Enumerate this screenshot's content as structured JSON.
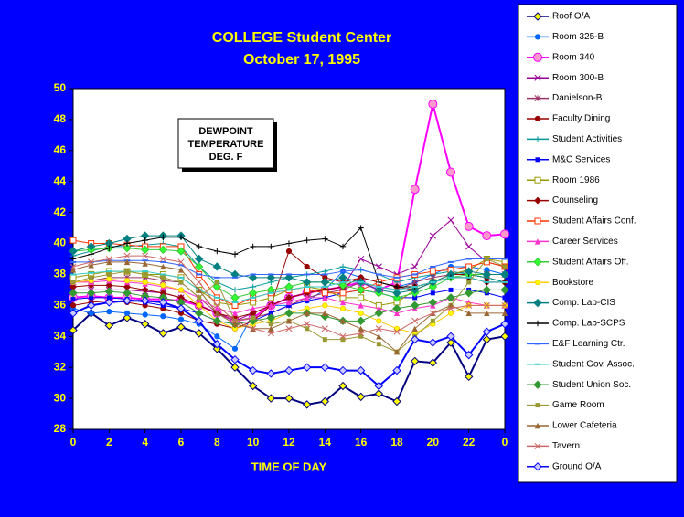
{
  "chart_data": {
    "type": "line",
    "title": "COLLEGE Student Center",
    "subtitle": "October 17, 1995",
    "annotation": [
      "DEWPOINT",
      "TEMPERATURE",
      "DEG.  F"
    ],
    "x_label": "TIME OF DAY",
    "x": [
      0,
      1,
      2,
      3,
      4,
      5,
      6,
      7,
      8,
      9,
      10,
      11,
      12,
      13,
      14,
      15,
      16,
      17,
      18,
      19,
      20,
      21,
      22,
      23,
      24
    ],
    "xlim": [
      0,
      24
    ],
    "xticks": [
      0,
      2,
      4,
      6,
      8,
      10,
      12,
      14,
      16,
      18,
      20,
      22,
      {
        "value": 24,
        "label": "0"
      }
    ],
    "ylim": [
      28,
      50
    ],
    "yticks": [
      28,
      30,
      32,
      34,
      36,
      38,
      40,
      42,
      44,
      46,
      48,
      50
    ],
    "grid": false,
    "legend": "right",
    "series": [
      {
        "name": "Roof O/A",
        "color": "#000080",
        "marker": "diamond",
        "marker_color": "#ffff00",
        "values": [
          34.4,
          35.5,
          34.7,
          35.2,
          34.8,
          34.2,
          34.6,
          34.2,
          33.2,
          32,
          30.8,
          30,
          30,
          29.6,
          29.8,
          30.8,
          30.1,
          30.3,
          29.8,
          32.4,
          32.3,
          33.6,
          31.4,
          33.8,
          34
        ]
      },
      {
        "name": "Room 325-B",
        "color": "#0066ff",
        "marker": "circle",
        "marker_color": "#0066ff",
        "values": [
          35.8,
          35.5,
          35.6,
          35.5,
          35.4,
          35.3,
          35.1,
          34.8,
          34,
          33.2,
          35.5,
          36,
          36,
          36.3,
          37,
          38.2,
          37.8,
          37.5,
          37.2,
          37.5,
          38,
          38.5,
          38.5,
          38.3,
          38
        ]
      },
      {
        "name": "Room 340",
        "color": "#ff00ff",
        "marker": "bigcircle",
        "marker_color": "#ff99cc",
        "values": [
          36.5,
          36.6,
          36.5,
          36.5,
          36.4,
          36.4,
          36.3,
          36,
          35.5,
          35,
          35.2,
          36,
          36.5,
          36.8,
          37,
          37.2,
          37.5,
          37,
          37.5,
          43.5,
          49,
          44.6,
          41.1,
          40.5,
          40.6
        ]
      },
      {
        "name": "Room 300-B",
        "color": "#990099",
        "marker": "x",
        "marker_color": "#990099",
        "values": [
          37,
          37,
          37,
          37,
          36.9,
          36.8,
          36.5,
          36,
          35.5,
          35,
          35.5,
          36,
          36.5,
          36.8,
          37,
          37.2,
          39,
          38.5,
          38,
          38.5,
          40.5,
          41.5,
          39.8,
          38.8,
          38.5
        ]
      },
      {
        "name": "Danielson-B",
        "color": "#993366",
        "marker": "star",
        "marker_color": "#993366",
        "values": [
          37.5,
          37.6,
          37.8,
          37.8,
          37.8,
          37.6,
          37.5,
          36.5,
          35.5,
          35,
          35.2,
          35.5,
          36,
          36.5,
          36.8,
          37,
          37.5,
          37.2,
          37,
          37.5,
          37.8,
          38,
          38,
          38,
          38
        ]
      },
      {
        "name": "Faculty Dining",
        "color": "#990000",
        "marker": "circle",
        "marker_color": "#990000",
        "values": [
          36,
          36.2,
          36.3,
          36.2,
          36,
          35.8,
          35.5,
          35,
          34.8,
          34.5,
          35,
          36,
          39.5,
          38.5,
          37.8,
          37.5,
          37.8,
          37.5,
          37.2,
          37.2,
          37.5,
          38,
          38,
          37.8,
          37.5
        ]
      },
      {
        "name": "Student Activities",
        "color": "#009999",
        "marker": "plus",
        "marker_color": "#009999",
        "values": [
          39.2,
          39.5,
          39.8,
          39.8,
          39.9,
          40,
          39.8,
          38.5,
          37.5,
          37,
          37.2,
          37.5,
          37.8,
          38,
          38.2,
          38.5,
          38.3,
          38,
          37.5,
          37.8,
          38,
          38.2,
          38,
          37.8,
          37.5
        ]
      },
      {
        "name": "M&C Services",
        "color": "#0000ff",
        "marker": "square",
        "marker_color": "#0000ff",
        "values": [
          36.4,
          36.5,
          36.5,
          36.4,
          36.2,
          36,
          35.8,
          35.5,
          35,
          34.8,
          35,
          35.5,
          36,
          36.3,
          36.5,
          36.8,
          37,
          36.8,
          36.5,
          36.5,
          36.8,
          37,
          37,
          36.8,
          36.5
        ]
      },
      {
        "name": "Room 1986",
        "color": "#999900",
        "marker": "opensquare",
        "marker_color": "#999900",
        "values": [
          37.8,
          38,
          38.2,
          38.2,
          38,
          38,
          37.8,
          37,
          36.2,
          36,
          36.2,
          36.5,
          37,
          37.2,
          37,
          36.5,
          36.5,
          36,
          36.2,
          37,
          37.5,
          38,
          38.3,
          39,
          38.8
        ]
      },
      {
        "name": "Counseling",
        "color": "#990000",
        "marker": "opendiamond",
        "marker_color": "#990000",
        "values": [
          37.2,
          37.3,
          37.3,
          37.2,
          37,
          36.8,
          36.5,
          36,
          35.5,
          35.2,
          35.5,
          36,
          36.5,
          36.8,
          37,
          37.2,
          37.8,
          37.5,
          37.2,
          37,
          37.5,
          37.8,
          37.8,
          37.5,
          37.5
        ]
      },
      {
        "name": "Student Affairs Conf.",
        "color": "#ff3300",
        "marker": "opensquare",
        "marker_color": "#ff3300",
        "values": [
          40.2,
          40,
          40,
          39.9,
          39.8,
          39.8,
          39.8,
          38,
          36.5,
          36,
          36.5,
          36.8,
          37,
          37,
          36.8,
          36.8,
          37,
          37.5,
          37.8,
          38,
          38.2,
          38.3,
          38.5,
          38.8,
          38.5
        ]
      },
      {
        "name": "Career Services",
        "color": "#ff33cc",
        "marker": "triangle",
        "marker_color": "#ff33cc",
        "values": [
          37.5,
          37.5,
          37.6,
          37.5,
          37.4,
          37.2,
          37,
          36.5,
          35.8,
          35.5,
          35.8,
          36,
          36.2,
          36.5,
          36.5,
          36.2,
          36,
          35.8,
          35.5,
          35.8,
          36,
          36.5,
          36.2,
          36,
          36
        ]
      },
      {
        "name": "Student Affairs Off.",
        "color": "#33cc33",
        "marker": "diamond",
        "marker_color": "#33ff33",
        "values": [
          39.5,
          39.6,
          39.7,
          39.7,
          39.6,
          39.6,
          39.5,
          38.5,
          37.2,
          36.5,
          36.8,
          37,
          37.2,
          37.5,
          37.5,
          37.3,
          37,
          36.8,
          36.5,
          36.8,
          37.2,
          37.8,
          38,
          38,
          38
        ]
      },
      {
        "name": "Bookstore",
        "color": "#ffcc00",
        "marker": "circle",
        "marker_color": "#ffff00",
        "values": [
          37.5,
          37.6,
          37.7,
          37.6,
          37.5,
          37.3,
          37,
          36,
          35,
          34.5,
          34.8,
          35,
          35.5,
          35.8,
          36,
          35.8,
          35.5,
          35,
          34.5,
          34.2,
          34.8,
          35.5,
          36,
          36,
          36
        ]
      },
      {
        "name": "Comp. Lab-CIS",
        "color": "#008080",
        "marker": "diamond",
        "marker_color": "#008080",
        "values": [
          39.5,
          39.8,
          40,
          40.3,
          40.5,
          40.5,
          40.5,
          39,
          38.5,
          38,
          37.8,
          37.8,
          37.8,
          37.5,
          37.5,
          37.8,
          37.5,
          37,
          36.8,
          37,
          37.5,
          38,
          38.2,
          38,
          38
        ]
      },
      {
        "name": "Comp. Lab-SCPS",
        "color": "#000000",
        "marker": "plus",
        "marker_color": "#000000",
        "values": [
          39,
          39.3,
          39.7,
          40,
          40.2,
          40.4,
          40.4,
          39.8,
          39.5,
          39.3,
          39.8,
          39.8,
          40,
          40.2,
          40.3,
          39.8,
          41,
          37.5,
          37.2,
          37.2,
          37.5,
          37.8,
          37.8,
          37.5,
          37.5
        ]
      },
      {
        "name": "E&F Learning Ctr.",
        "color": "#3366ff",
        "marker": "dash",
        "marker_color": "#3366ff",
        "values": [
          38.8,
          38.8,
          38.9,
          38.9,
          38.9,
          38.8,
          38.6,
          38,
          37.8,
          37.8,
          38,
          38,
          38,
          38,
          38,
          38.2,
          38.3,
          38,
          37.8,
          38,
          38.5,
          38.8,
          39,
          39,
          39
        ]
      },
      {
        "name": "Student Gov. Assoc.",
        "color": "#33cccc",
        "marker": "dash",
        "marker_color": "#33cccc",
        "values": [
          38,
          38.1,
          38.2,
          38.2,
          38.2,
          38,
          37.8,
          37,
          36.5,
          36.2,
          36.5,
          36.8,
          37,
          37.2,
          37.2,
          37.5,
          37.5,
          37.2,
          37,
          37.2,
          37.5,
          37.8,
          37.8,
          37.5,
          37.5
        ]
      },
      {
        "name": "Student Union Soc.",
        "color": "#339933",
        "marker": "diamond",
        "marker_color": "#339933",
        "values": [
          36.8,
          36.8,
          36.9,
          36.8,
          36.6,
          36.5,
          36.2,
          35.5,
          35,
          34.8,
          35,
          35.2,
          35.5,
          35.5,
          35.3,
          35,
          35,
          35.5,
          35.8,
          36,
          36.2,
          36.5,
          36.8,
          37,
          37
        ]
      },
      {
        "name": "Game Room",
        "color": "#999933",
        "marker": "square",
        "marker_color": "#999933",
        "values": [
          37.5,
          37.8,
          38,
          38.2,
          38,
          37.8,
          37.5,
          36.5,
          37.5,
          35,
          35.2,
          34.8,
          35,
          34.5,
          33.8,
          33.8,
          34,
          33.5,
          33,
          34,
          35,
          36,
          37.5,
          39,
          38.5
        ]
      },
      {
        "name": "Lower Cafeteria",
        "color": "#996633",
        "marker": "triangle",
        "marker_color": "#996633",
        "values": [
          38.3,
          38.6,
          38.8,
          38.8,
          38.7,
          38.5,
          38.3,
          37,
          35.5,
          34.8,
          34.5,
          34.5,
          35,
          35.5,
          35.5,
          35,
          34.5,
          34,
          33,
          34.5,
          35.5,
          36,
          35.5,
          35.5,
          35.5
        ]
      },
      {
        "name": "Tavern",
        "color": "#cc6666",
        "marker": "x",
        "marker_color": "#cc6666",
        "values": [
          38.5,
          38.8,
          39,
          39.2,
          39.2,
          39,
          38.8,
          37.5,
          36,
          35,
          34.5,
          34.2,
          34.5,
          34.8,
          34.5,
          34,
          34.2,
          34.5,
          34.3,
          35,
          35.5,
          35.8,
          36,
          36,
          36
        ]
      },
      {
        "name": "Ground O/A",
        "color": "#0000ff",
        "marker": "diamond",
        "marker_color": "#ccccff",
        "values": [
          35.5,
          36,
          36.2,
          36.3,
          36.3,
          36.2,
          35.8,
          35,
          33.5,
          32.5,
          31.8,
          31.6,
          31.8,
          32,
          32,
          31.8,
          31.8,
          30.8,
          31.8,
          33.8,
          33.6,
          34,
          32.8,
          34.3,
          34.8
        ]
      }
    ]
  }
}
